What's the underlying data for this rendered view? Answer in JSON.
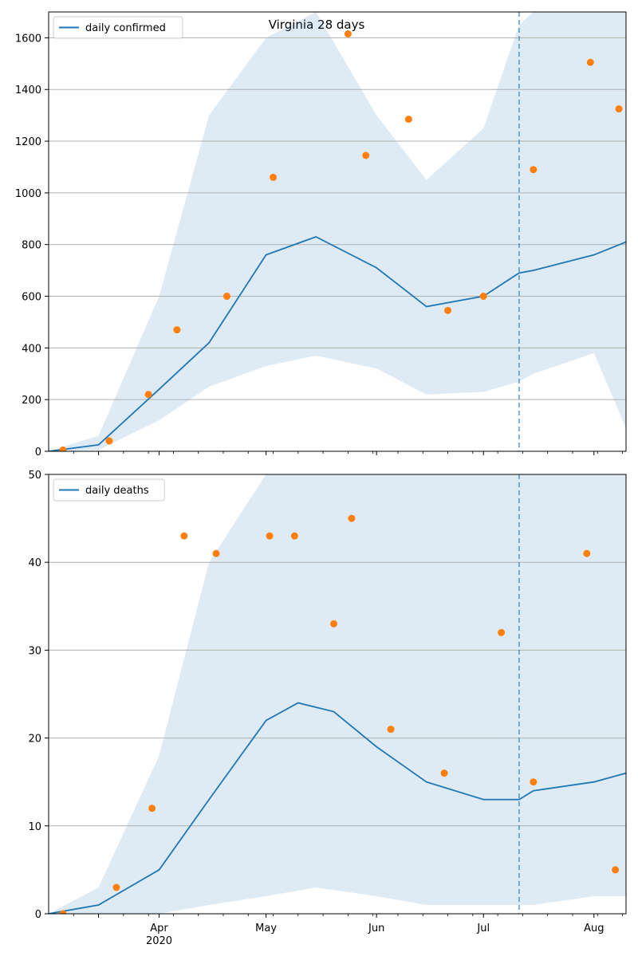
{
  "figure": {
    "title": "Virginia 28 days"
  },
  "chart_data": [
    {
      "type": "line",
      "series": [
        {
          "name": "daily confirmed",
          "kind": "line",
          "color": "#1f77b4",
          "x": [
            "2020-03-01",
            "2020-03-15",
            "2020-04-01",
            "2020-04-15",
            "2020-05-01",
            "2020-05-15",
            "2020-06-01",
            "2020-06-15",
            "2020-07-01",
            "2020-07-11",
            "2020-07-15",
            "2020-08-01",
            "2020-08-10"
          ],
          "values": [
            0,
            25,
            240,
            420,
            760,
            830,
            710,
            560,
            600,
            690,
            700,
            760,
            810
          ]
        },
        {
          "name": "",
          "kind": "points",
          "color": "#ff7f0e",
          "x": [
            "2020-03-05",
            "2020-03-18",
            "2020-03-29",
            "2020-04-06",
            "2020-04-20",
            "2020-05-03",
            "2020-05-24",
            "2020-05-29",
            "2020-06-10",
            "2020-06-21",
            "2020-07-01",
            "2020-07-15",
            "2020-07-31",
            "2020-08-08"
          ],
          "values": [
            5,
            40,
            220,
            470,
            600,
            1060,
            1615,
            1145,
            1285,
            545,
            600,
            1090,
            1505,
            1325
          ]
        }
      ],
      "bands": {
        "x": [
          "2020-03-01",
          "2020-03-15",
          "2020-04-01",
          "2020-04-15",
          "2020-05-01",
          "2020-05-15",
          "2020-06-01",
          "2020-06-15",
          "2020-07-01",
          "2020-07-11",
          "2020-07-15",
          "2020-08-01",
          "2020-08-10"
        ],
        "lower": [
          0,
          5,
          120,
          250,
          330,
          370,
          320,
          220,
          230,
          270,
          300,
          380,
          90
        ],
        "upper": [
          0,
          60,
          600,
          1300,
          1600,
          1700,
          1300,
          1050,
          1250,
          1650,
          1700,
          1700,
          1700
        ]
      },
      "xlim": [
        "2020-03-01",
        "2020-08-10"
      ],
      "ylim": [
        0,
        1700
      ],
      "y_ticks": [
        0,
        200,
        400,
        600,
        800,
        1000,
        1200,
        1400,
        1600
      ],
      "x_ticks": [
        "",
        "",
        "",
        "",
        "",
        ""
      ],
      "forecast_start": "2020-07-11",
      "legend_placement": "upper-left",
      "grid": "horizontal"
    },
    {
      "type": "line",
      "series": [
        {
          "name": "daily deaths",
          "kind": "line",
          "color": "#1f77b4",
          "x": [
            "2020-03-01",
            "2020-03-15",
            "2020-04-01",
            "2020-04-15",
            "2020-05-01",
            "2020-05-10",
            "2020-05-20",
            "2020-06-01",
            "2020-06-15",
            "2020-07-01",
            "2020-07-11",
            "2020-07-15",
            "2020-08-01",
            "2020-08-10"
          ],
          "values": [
            0,
            1,
            5,
            13,
            22,
            24,
            23,
            19,
            15,
            13,
            13,
            14,
            15,
            16
          ]
        },
        {
          "name": "",
          "kind": "points",
          "color": "#ff7f0e",
          "x": [
            "2020-03-05",
            "2020-03-20",
            "2020-03-30",
            "2020-04-08",
            "2020-04-17",
            "2020-05-02",
            "2020-05-09",
            "2020-05-20",
            "2020-05-25",
            "2020-06-05",
            "2020-06-20",
            "2020-07-06",
            "2020-07-15",
            "2020-07-30",
            "2020-08-07"
          ],
          "values": [
            0,
            3,
            12,
            43,
            41,
            43,
            43,
            33,
            45,
            21,
            16,
            32,
            15,
            41,
            5
          ]
        }
      ],
      "bands": {
        "x": [
          "2020-03-01",
          "2020-03-15",
          "2020-04-01",
          "2020-04-15",
          "2020-05-01",
          "2020-05-15",
          "2020-06-01",
          "2020-06-15",
          "2020-07-01",
          "2020-07-11",
          "2020-07-15",
          "2020-08-01",
          "2020-08-10"
        ],
        "lower": [
          0,
          0,
          0,
          1,
          2,
          3,
          2,
          1,
          1,
          1,
          1,
          2,
          2
        ],
        "upper": [
          0,
          3,
          18,
          40,
          55,
          60,
          55,
          50,
          50,
          50,
          50,
          50,
          55
        ]
      },
      "xlim": [
        "2020-03-01",
        "2020-08-10"
      ],
      "ylim": [
        0,
        50
      ],
      "y_ticks": [
        0,
        10,
        20,
        30,
        40,
        50
      ],
      "x_ticks": [
        "",
        "Apr",
        "May",
        "Jun",
        "Jul",
        "Aug"
      ],
      "x_subtitle": "2020",
      "forecast_start": "2020-07-11",
      "legend_placement": "upper-left",
      "grid": "horizontal"
    }
  ]
}
